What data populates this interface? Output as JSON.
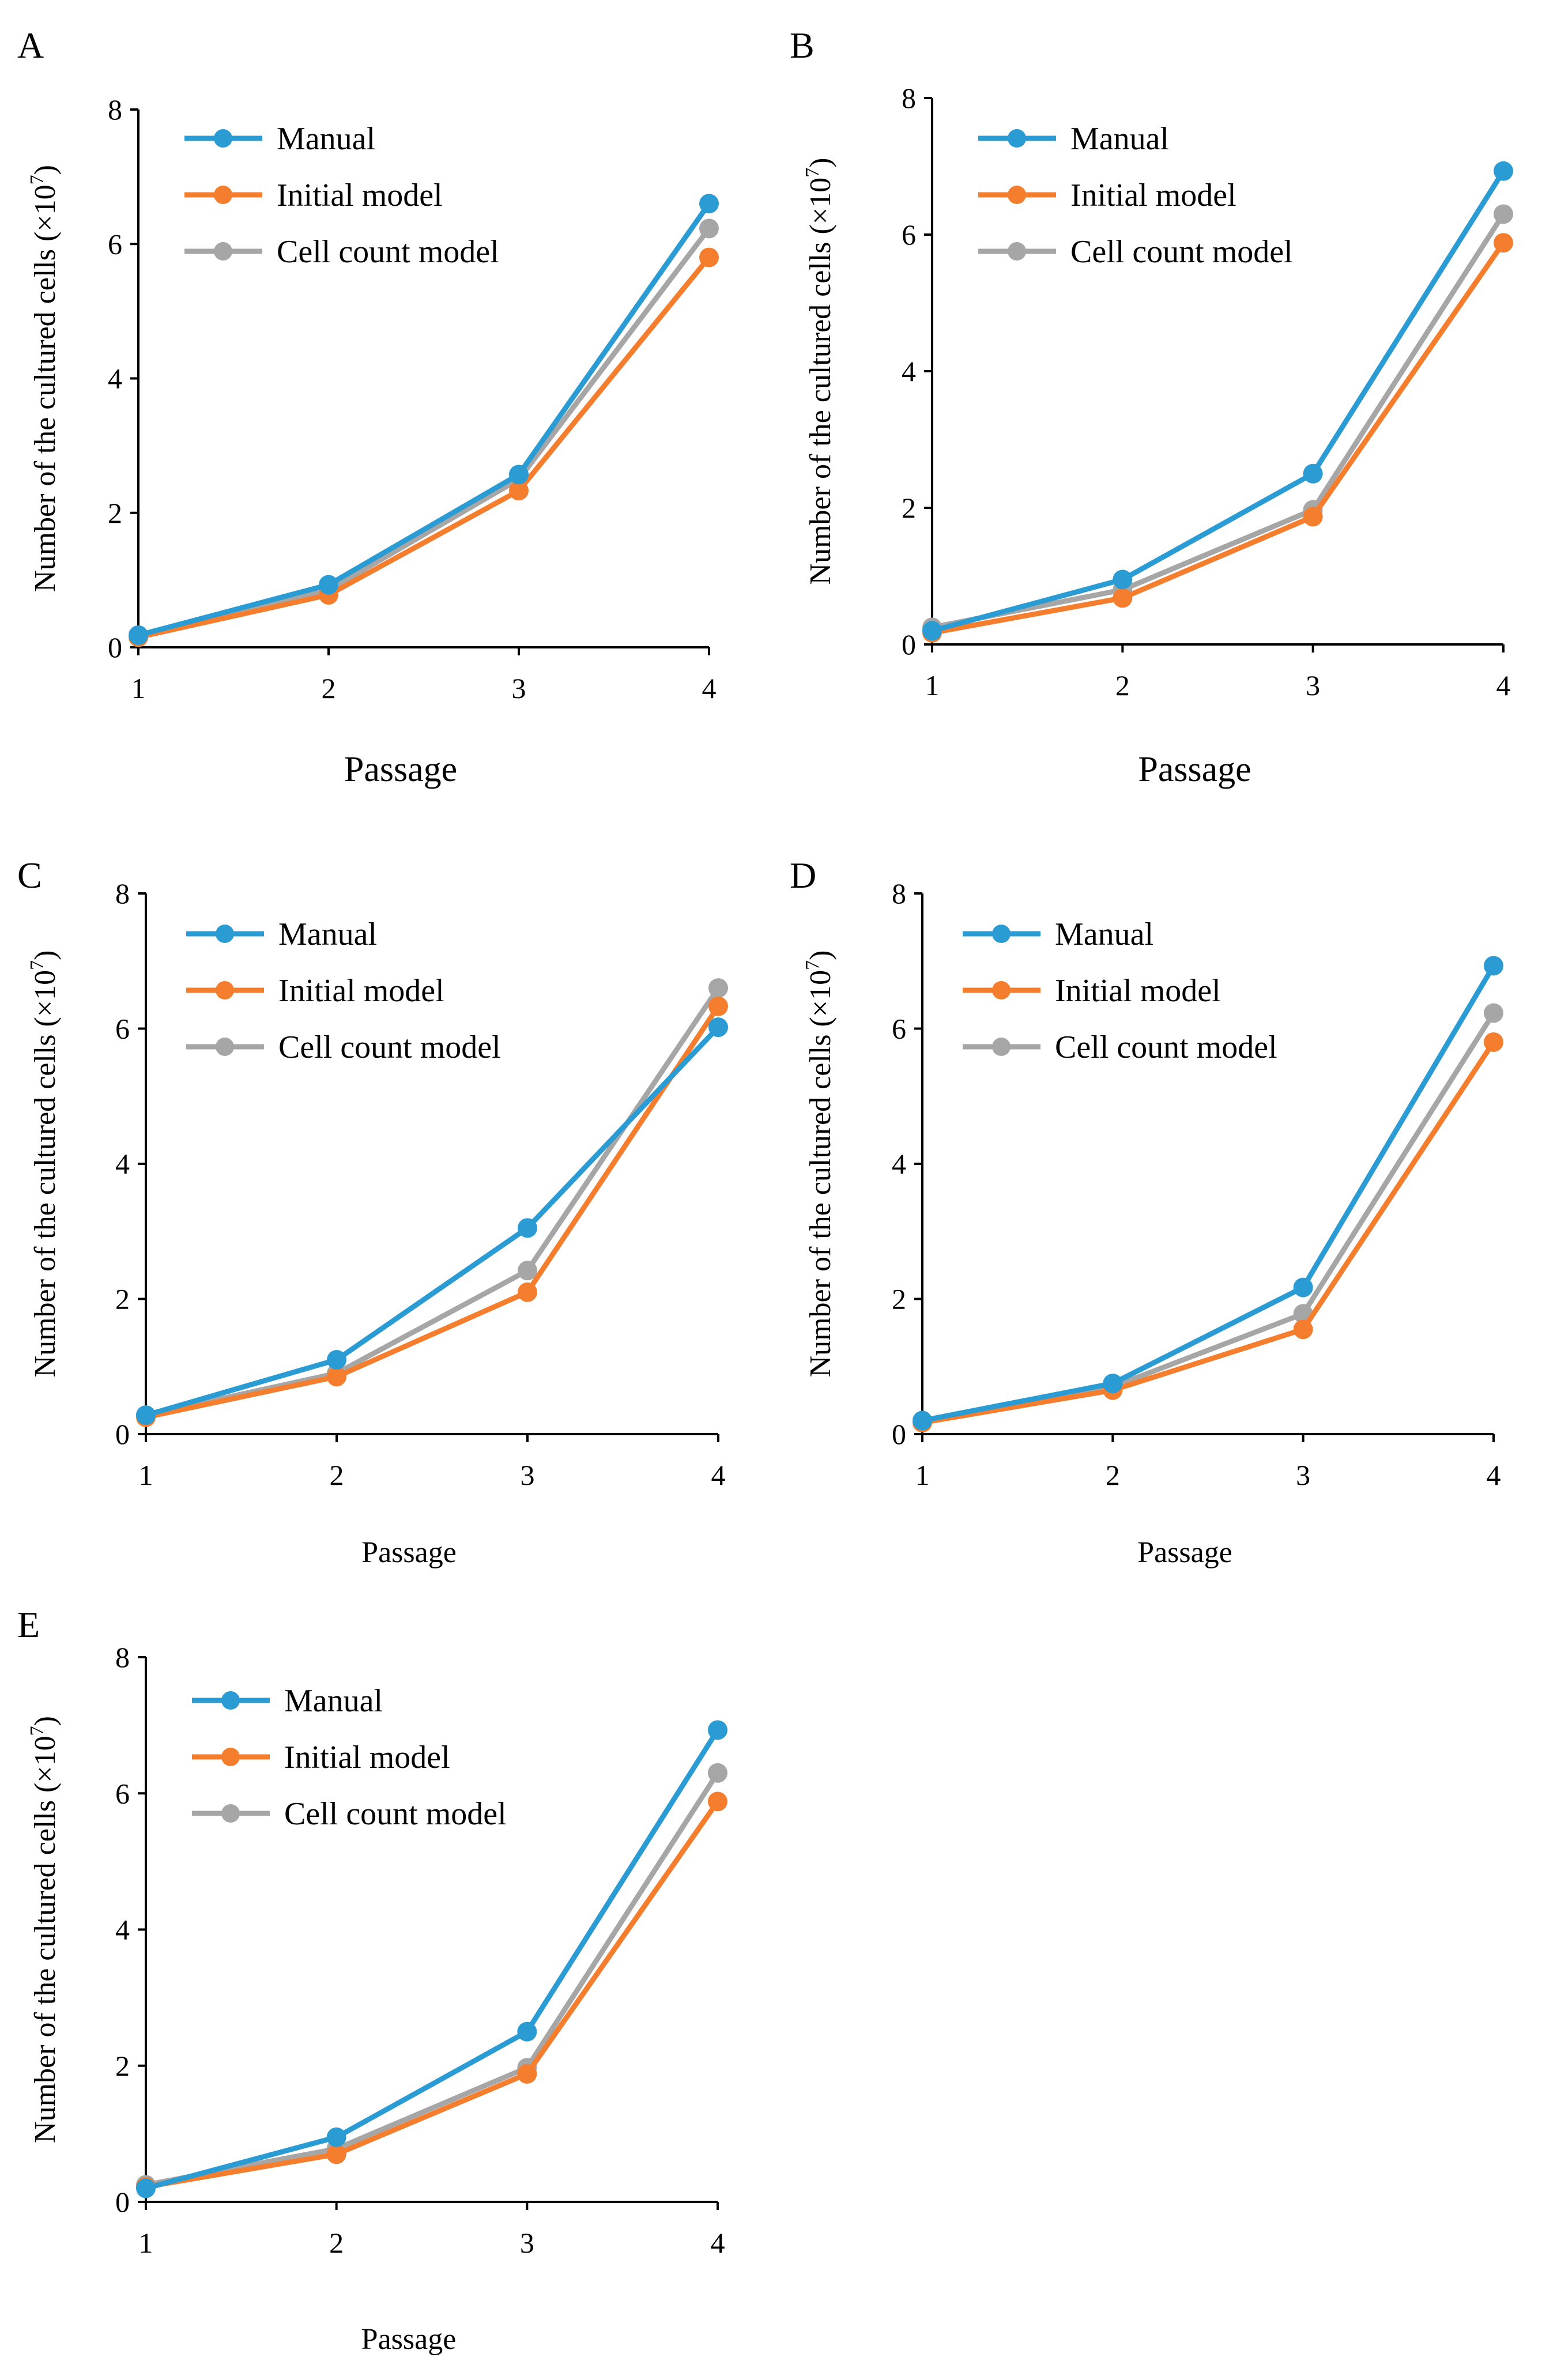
{
  "chart_data": [
    {
      "panel": "A",
      "type": "line",
      "x": [
        1,
        2,
        3,
        4
      ],
      "xlabel": "Passage",
      "ylabel": "Number of the cultured cells (×10",
      "ylabel_exp": "7",
      "ylabel_close": ")",
      "ylim": [
        0,
        8
      ],
      "yticks": [
        0,
        2,
        4,
        6,
        8
      ],
      "series": [
        {
          "name": "Manual",
          "values": [
            0.18,
            0.93,
            2.57,
            6.6
          ]
        },
        {
          "name": "Initial model",
          "values": [
            0.15,
            0.78,
            2.33,
            5.8
          ]
        },
        {
          "name": "Cell count model",
          "values": [
            0.18,
            0.85,
            2.5,
            6.23
          ]
        }
      ],
      "legend": "top-left"
    },
    {
      "panel": "B",
      "type": "line",
      "x": [
        1,
        2,
        3,
        4
      ],
      "xlabel": "Passage",
      "ylabel": "Number of the cultured cells (×10",
      "ylabel_exp": "7",
      "ylabel_close": ")",
      "ylim": [
        0,
        8
      ],
      "yticks": [
        0,
        2,
        4,
        6,
        8
      ],
      "series": [
        {
          "name": "Manual",
          "values": [
            0.2,
            0.95,
            2.5,
            6.93
          ]
        },
        {
          "name": "Initial model",
          "values": [
            0.17,
            0.68,
            1.87,
            5.88
          ]
        },
        {
          "name": "Cell count model",
          "values": [
            0.25,
            0.8,
            1.97,
            6.3
          ]
        }
      ],
      "legend": "top-left"
    },
    {
      "panel": "C",
      "type": "line",
      "x": [
        1,
        2,
        3,
        4
      ],
      "xlabel": "Passage",
      "ylabel": "Number of the cultured cells (×10",
      "ylabel_exp": "7",
      "ylabel_close": ")",
      "ylim": [
        0,
        8
      ],
      "yticks": [
        0,
        2,
        4,
        6,
        8
      ],
      "series": [
        {
          "name": "Manual",
          "values": [
            0.28,
            1.1,
            3.05,
            6.02
          ]
        },
        {
          "name": "Initial model",
          "values": [
            0.25,
            0.85,
            2.1,
            6.33
          ]
        },
        {
          "name": "Cell count model",
          "values": [
            0.28,
            0.9,
            2.42,
            6.6
          ]
        }
      ],
      "legend": "top-left"
    },
    {
      "panel": "D",
      "type": "line",
      "x": [
        1,
        2,
        3,
        4
      ],
      "xlabel": "Passage",
      "ylabel": "Number of the cultured cells (×10",
      "ylabel_exp": "7",
      "ylabel_close": ")",
      "ylim": [
        0,
        8
      ],
      "yticks": [
        0,
        2,
        4,
        6,
        8
      ],
      "series": [
        {
          "name": "Manual",
          "values": [
            0.2,
            0.75,
            2.17,
            6.93
          ]
        },
        {
          "name": "Initial model",
          "values": [
            0.17,
            0.65,
            1.55,
            5.8
          ]
        },
        {
          "name": "Cell count model",
          "values": [
            0.2,
            0.7,
            1.78,
            6.23
          ]
        }
      ],
      "legend": "top-left"
    },
    {
      "panel": "E",
      "type": "line",
      "x": [
        1,
        2,
        3,
        4
      ],
      "xlabel": "Passage",
      "ylabel": "Number of the cultured cells (×10",
      "ylabel_exp": "7",
      "ylabel_close": ")",
      "ylim": [
        0,
        8
      ],
      "yticks": [
        0,
        2,
        4,
        6,
        8
      ],
      "series": [
        {
          "name": "Manual",
          "values": [
            0.2,
            0.95,
            2.5,
            6.93
          ]
        },
        {
          "name": "Initial model",
          "values": [
            0.22,
            0.7,
            1.88,
            5.88
          ]
        },
        {
          "name": "Cell count model",
          "values": [
            0.25,
            0.78,
            1.97,
            6.3
          ]
        }
      ],
      "legend": "top-left"
    }
  ],
  "colors": {
    "Manual": "#2b9bd3",
    "Initial model": "#f47e2e",
    "Cell count model": "#a6a6a6",
    "axis": "#000000"
  }
}
